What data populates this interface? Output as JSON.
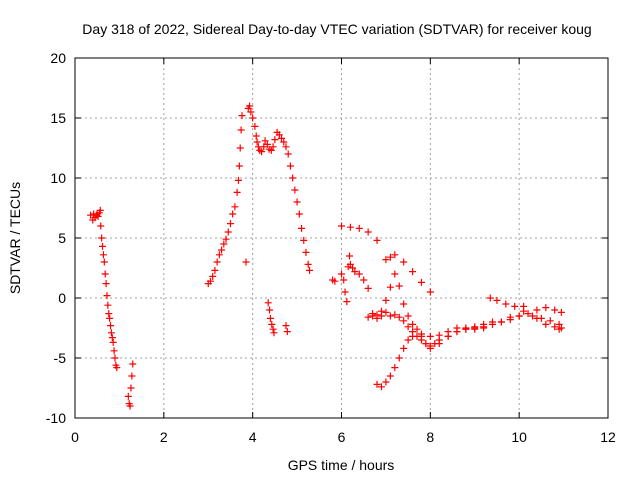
{
  "chart_data": {
    "type": "scatter",
    "title": "Day 318 of 2022, Sidereal Day-to-day VTEC variation (SDTVAR) for receiver koug",
    "xlabel": "GPS time / hours",
    "ylabel": "SDTVAR / TECUs",
    "xlim": [
      0,
      12
    ],
    "ylim": [
      -10,
      20
    ],
    "xticks": [
      0,
      2,
      4,
      6,
      8,
      10,
      12
    ],
    "yticks": [
      -10,
      -5,
      0,
      5,
      10,
      15,
      20
    ],
    "grid": true,
    "marker": "+",
    "color": "#ff0000",
    "series": [
      {
        "name": "seg1",
        "points": [
          [
            0.35,
            6.9
          ],
          [
            0.4,
            6.5
          ],
          [
            0.42,
            7.0
          ],
          [
            0.45,
            6.7
          ],
          [
            0.48,
            6.9
          ],
          [
            0.5,
            7.0
          ],
          [
            0.52,
            6.8
          ],
          [
            0.55,
            7.1
          ],
          [
            0.57,
            7.3
          ],
          [
            0.58,
            6.0
          ],
          [
            0.6,
            5.0
          ],
          [
            0.62,
            4.3
          ],
          [
            0.64,
            3.6
          ],
          [
            0.66,
            3.0
          ],
          [
            0.68,
            2.0
          ],
          [
            0.7,
            1.2
          ],
          [
            0.72,
            0.2
          ],
          [
            0.74,
            -0.6
          ],
          [
            0.76,
            -1.3
          ],
          [
            0.78,
            -1.7
          ],
          [
            0.8,
            -2.3
          ],
          [
            0.82,
            -2.9
          ],
          [
            0.84,
            -3.3
          ],
          [
            0.86,
            -3.7
          ],
          [
            0.88,
            -4.4
          ],
          [
            0.9,
            -5.0
          ],
          [
            0.92,
            -5.6
          ],
          [
            0.94,
            -5.8
          ]
        ]
      },
      {
        "name": "seg2",
        "points": [
          [
            1.2,
            -8.2
          ],
          [
            1.22,
            -8.8
          ],
          [
            1.24,
            -9.0
          ],
          [
            1.26,
            -7.5
          ],
          [
            1.28,
            -6.5
          ],
          [
            1.3,
            -5.5
          ]
        ]
      },
      {
        "name": "seg3",
        "points": [
          [
            3.0,
            1.2
          ],
          [
            3.05,
            1.4
          ],
          [
            3.1,
            1.8
          ],
          [
            3.15,
            2.3
          ],
          [
            3.2,
            3.0
          ],
          [
            3.25,
            3.6
          ],
          [
            3.3,
            4.0
          ],
          [
            3.35,
            4.5
          ],
          [
            3.4,
            4.9
          ],
          [
            3.45,
            5.5
          ],
          [
            3.5,
            6.2
          ],
          [
            3.55,
            7.0
          ],
          [
            3.6,
            7.6
          ],
          [
            3.65,
            8.8
          ],
          [
            3.68,
            9.8
          ],
          [
            3.7,
            11.0
          ],
          [
            3.72,
            12.5
          ],
          [
            3.74,
            14.0
          ],
          [
            3.76,
            15.2
          ]
        ]
      },
      {
        "name": "seg4",
        "points": [
          [
            3.85,
            3.0
          ],
          [
            3.9,
            15.8
          ],
          [
            3.93,
            16.0
          ],
          [
            3.96,
            15.5
          ],
          [
            4.0,
            15.0
          ],
          [
            4.05,
            14.3
          ],
          [
            4.08,
            13.5
          ],
          [
            4.1,
            13.0
          ],
          [
            4.13,
            12.6
          ],
          [
            4.16,
            12.3
          ],
          [
            4.2,
            12.2
          ],
          [
            4.25,
            12.6
          ],
          [
            4.28,
            13.1
          ],
          [
            4.33,
            12.8
          ],
          [
            4.37,
            12.4
          ],
          [
            4.42,
            12.3
          ],
          [
            4.46,
            12.6
          ],
          [
            4.5,
            13.2
          ],
          [
            4.55,
            13.8
          ],
          [
            4.6,
            13.6
          ],
          [
            4.65,
            13.3
          ],
          [
            4.7,
            13.0
          ],
          [
            4.75,
            12.6
          ],
          [
            4.8,
            12.0
          ],
          [
            4.85,
            11.0
          ],
          [
            4.9,
            10.0
          ],
          [
            4.95,
            9.0
          ],
          [
            5.0,
            8.0
          ],
          [
            5.05,
            7.0
          ],
          [
            5.1,
            5.8
          ],
          [
            5.15,
            4.8
          ],
          [
            5.2,
            3.8
          ],
          [
            5.25,
            2.8
          ],
          [
            5.28,
            2.3
          ]
        ]
      },
      {
        "name": "seg5",
        "points": [
          [
            4.35,
            -0.4
          ],
          [
            4.38,
            -1.0
          ],
          [
            4.4,
            -1.7
          ],
          [
            4.43,
            -2.2
          ],
          [
            4.46,
            -2.6
          ],
          [
            4.48,
            -2.9
          ],
          [
            4.75,
            -2.3
          ],
          [
            4.78,
            -2.8
          ]
        ]
      },
      {
        "name": "seg6",
        "points": [
          [
            5.8,
            1.5
          ],
          [
            5.85,
            1.4
          ],
          [
            6.0,
            6.0
          ],
          [
            6.2,
            5.9
          ],
          [
            6.4,
            5.8
          ],
          [
            6.6,
            5.5
          ],
          [
            6.8,
            4.8
          ],
          [
            7.0,
            3.2
          ],
          [
            7.1,
            3.4
          ],
          [
            7.2,
            3.6
          ],
          [
            7.4,
            3.0
          ],
          [
            7.6,
            2.2
          ],
          [
            7.8,
            1.3
          ],
          [
            8.0,
            0.5
          ]
        ]
      },
      {
        "name": "seg7",
        "points": [
          [
            6.0,
            2.0
          ],
          [
            6.05,
            1.5
          ],
          [
            6.08,
            0.5
          ],
          [
            6.12,
            -0.3
          ],
          [
            6.15,
            2.6
          ],
          [
            6.18,
            3.5
          ],
          [
            6.2,
            2.8
          ],
          [
            6.25,
            2.5
          ],
          [
            6.3,
            2.2
          ],
          [
            6.4,
            2.0
          ],
          [
            6.5,
            1.5
          ],
          [
            6.6,
            0.8
          ],
          [
            6.7,
            -1.5
          ],
          [
            6.8,
            -1.7
          ],
          [
            6.9,
            -1.5
          ],
          [
            7.0,
            -0.2
          ],
          [
            7.1,
            0.9
          ],
          [
            7.2,
            2.0
          ],
          [
            7.3,
            1.0
          ],
          [
            7.4,
            -0.5
          ],
          [
            7.5,
            -1.5
          ],
          [
            7.6,
            -2.2
          ],
          [
            7.7,
            -2.6
          ],
          [
            7.8,
            -3.2
          ],
          [
            7.9,
            -3.8
          ],
          [
            8.0,
            -4.2
          ],
          [
            8.2,
            -3.8
          ],
          [
            8.4,
            -3.2
          ],
          [
            8.6,
            -2.8
          ],
          [
            8.8,
            -2.6
          ],
          [
            9.0,
            -2.4
          ],
          [
            9.2,
            -2.2
          ],
          [
            9.4,
            -2.0
          ],
          [
            9.6,
            -2.0
          ],
          [
            9.8,
            -1.6
          ],
          [
            10.0,
            -1.5
          ],
          [
            10.2,
            -1.3
          ],
          [
            10.4,
            -1.0
          ],
          [
            10.6,
            -0.8
          ],
          [
            10.8,
            -1.0
          ],
          [
            10.95,
            -1.2
          ]
        ]
      },
      {
        "name": "seg8",
        "points": [
          [
            6.6,
            -1.6
          ],
          [
            6.7,
            -1.3
          ],
          [
            6.8,
            -1.4
          ],
          [
            6.9,
            -1.1
          ],
          [
            7.0,
            -1.2
          ],
          [
            7.1,
            -1.5
          ],
          [
            7.2,
            -1.4
          ],
          [
            7.3,
            -1.6
          ],
          [
            7.4,
            -1.9
          ],
          [
            7.5,
            -2.4
          ],
          [
            7.6,
            -2.8
          ],
          [
            7.7,
            -3.2
          ],
          [
            7.8,
            -3.5
          ],
          [
            7.9,
            -3.8
          ],
          [
            8.0,
            -4.0
          ],
          [
            8.1,
            -3.8
          ],
          [
            8.2,
            -3.5
          ],
          [
            8.4,
            -3.2
          ],
          [
            8.6,
            -2.8
          ],
          [
            8.8,
            -2.6
          ],
          [
            9.0,
            -2.5
          ],
          [
            9.2,
            -2.5
          ]
        ]
      },
      {
        "name": "seg9",
        "points": [
          [
            6.8,
            -7.2
          ],
          [
            6.9,
            -7.4
          ],
          [
            7.0,
            -7.0
          ],
          [
            7.1,
            -6.5
          ],
          [
            7.2,
            -5.8
          ],
          [
            7.3,
            -5.0
          ],
          [
            7.4,
            -4.2
          ],
          [
            7.5,
            -3.5
          ],
          [
            7.6,
            -3.2
          ],
          [
            7.8,
            -3.0
          ],
          [
            8.0,
            -3.2
          ],
          [
            8.2,
            -3.1
          ],
          [
            8.4,
            -2.8
          ],
          [
            8.6,
            -2.5
          ],
          [
            8.8,
            -2.5
          ],
          [
            9.0,
            -2.6
          ],
          [
            9.2,
            -2.4
          ],
          [
            9.4,
            -2.2
          ],
          [
            9.6,
            -2.0
          ],
          [
            9.8,
            -1.8
          ],
          [
            10.0,
            -1.5
          ],
          [
            10.1,
            -0.7
          ]
        ]
      },
      {
        "name": "seg10",
        "points": [
          [
            9.35,
            0.0
          ],
          [
            9.5,
            -0.2
          ],
          [
            9.7,
            -0.5
          ],
          [
            9.9,
            -0.7
          ],
          [
            10.1,
            -1.1
          ],
          [
            10.3,
            -1.5
          ],
          [
            10.5,
            -1.7
          ],
          [
            10.7,
            -1.9
          ],
          [
            10.9,
            -2.2
          ],
          [
            10.95,
            -2.5
          ],
          [
            10.4,
            -1.7
          ],
          [
            10.6,
            -2.2
          ],
          [
            10.8,
            -2.4
          ],
          [
            10.9,
            -2.6
          ]
        ]
      }
    ]
  }
}
